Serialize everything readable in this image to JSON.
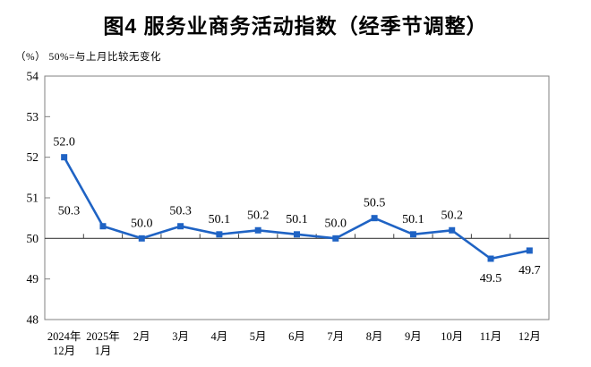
{
  "page": {
    "title": "图4  服务业商务活动指数（经季节调整）",
    "unit_note": "（%） 50%=与上月比较无变化"
  },
  "chart_data": {
    "type": "line",
    "title": "图4  服务业商务活动指数（经季节调整）",
    "unit_note": "（%） 50%=与上月比较无变化",
    "categories": [
      [
        "2024年",
        "12月"
      ],
      [
        "2025年",
        "1月"
      ],
      "2月",
      "3月",
      "4月",
      "5月",
      "6月",
      "7月",
      "8月",
      "9月",
      "10月",
      "11月",
      "12月"
    ],
    "values": [
      52.0,
      50.3,
      50.0,
      50.3,
      50.1,
      50.2,
      50.1,
      50.0,
      50.5,
      50.1,
      50.2,
      49.5,
      49.7
    ],
    "data_label_decimals": 1,
    "label_below_indices": [
      11,
      12
    ],
    "label_dx": {
      "1": -38
    },
    "ylim": [
      48,
      54
    ],
    "ytick_step": 1,
    "baseline": 50,
    "grid": false,
    "legend": "none",
    "line_color": "#1f63c4",
    "marker": "square",
    "axis_color": "#808080",
    "baseline_color": "#404040",
    "text_color": "#000000"
  }
}
